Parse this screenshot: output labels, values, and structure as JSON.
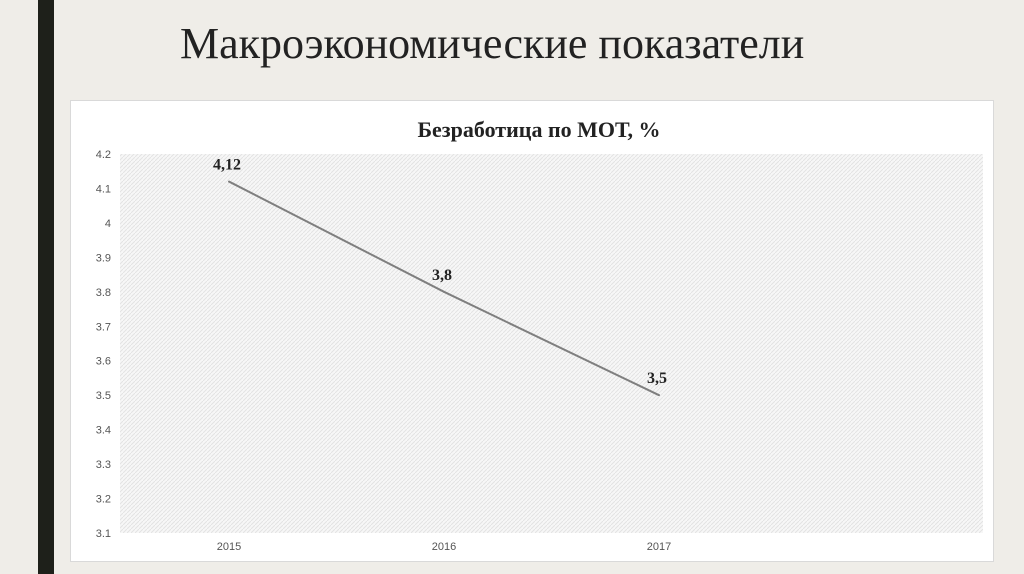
{
  "slide": {
    "title": "Макроэкономические показатели"
  },
  "colors": {
    "background": "#efede8",
    "accent_bar": "#1e201a",
    "line": "#7f7f7f",
    "plot_hatch": "#e3e3e3"
  },
  "chart_data": {
    "type": "line",
    "title": "Безработица по МОТ, %",
    "xlabel": "",
    "ylabel": "",
    "categories": [
      "2015",
      "2016",
      "2017"
    ],
    "series": [
      {
        "values": [
          4.12,
          3.8,
          3.5
        ],
        "labels": [
          "4,12",
          "3,8",
          "3,5"
        ]
      }
    ],
    "ylim": [
      3.1,
      4.2
    ],
    "yticks": [
      3.1,
      3.2,
      3.3,
      3.4,
      3.5,
      3.6,
      3.7,
      3.8,
      3.9,
      4,
      4.1,
      4.2
    ],
    "ytick_labels": [
      "3.1",
      "3.2",
      "3.3",
      "3.4",
      "3.5",
      "3.6",
      "3.7",
      "3.8",
      "3.9",
      "4",
      "4.1",
      "4.2"
    ],
    "legend": "none",
    "grid": false
  }
}
